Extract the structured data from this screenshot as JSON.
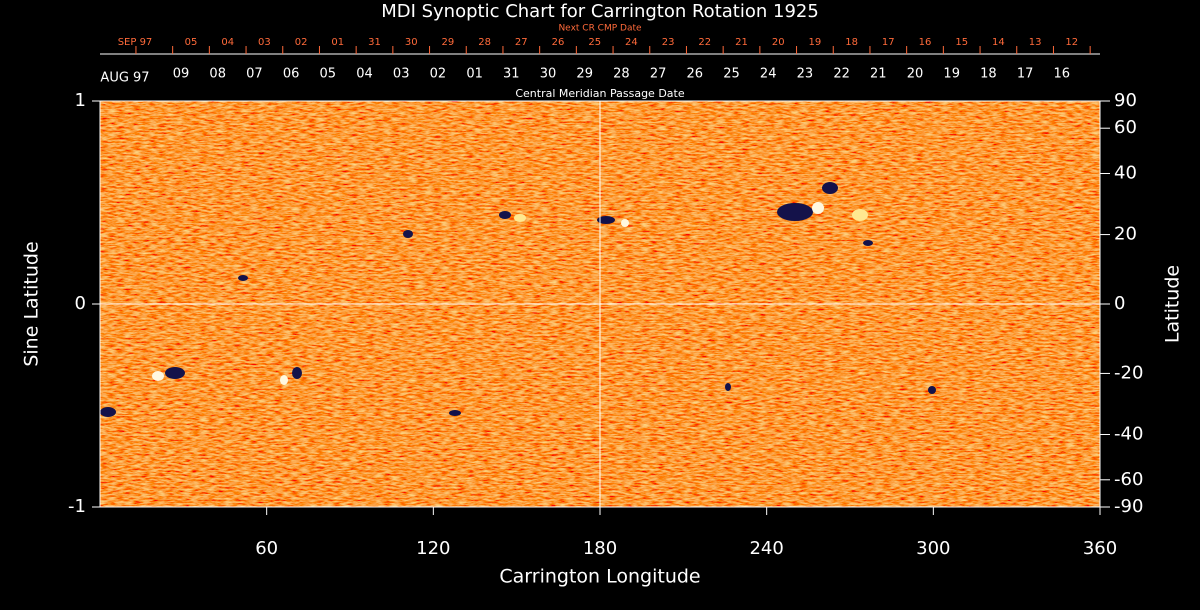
{
  "chart_data": {
    "type": "synoptic-map",
    "title": "MDI Synoptic Chart for Carrington Rotation 1925",
    "x_label": "Carrington Longitude",
    "y_label": "Sine Latitude",
    "y2_label": "Latitude",
    "xlim": [
      0,
      360
    ],
    "xticks": [
      60,
      120,
      180,
      240,
      300,
      360
    ],
    "ylim": [
      -1,
      1
    ],
    "yticks": [
      -1,
      0,
      1
    ],
    "y2lim": [
      -90,
      90
    ],
    "y2scale": "sine",
    "y2ticks": [
      90,
      60,
      40,
      20,
      0,
      -20,
      -40,
      -60,
      -90
    ],
    "date_axes": [
      {
        "name": "Next CR CMP Date",
        "color": "#ff6a3a",
        "categories": [
          "SEP 97",
          "05",
          "04",
          "03",
          "02",
          "01",
          "31",
          "30",
          "29",
          "28",
          "27",
          "26",
          "25",
          "24",
          "23",
          "22",
          "21",
          "20",
          "19",
          "18",
          "17",
          "16",
          "15",
          "14",
          "13",
          "12"
        ]
      },
      {
        "name": "Central Meridian Passage Date",
        "color": "#ffffff",
        "categories": [
          "AUG 97",
          "09",
          "08",
          "07",
          "06",
          "05",
          "04",
          "03",
          "02",
          "01",
          "31",
          "30",
          "29",
          "28",
          "27",
          "26",
          "25",
          "24",
          "23",
          "22",
          "21",
          "20",
          "19",
          "18",
          "17",
          "16"
        ]
      }
    ]
  }
}
